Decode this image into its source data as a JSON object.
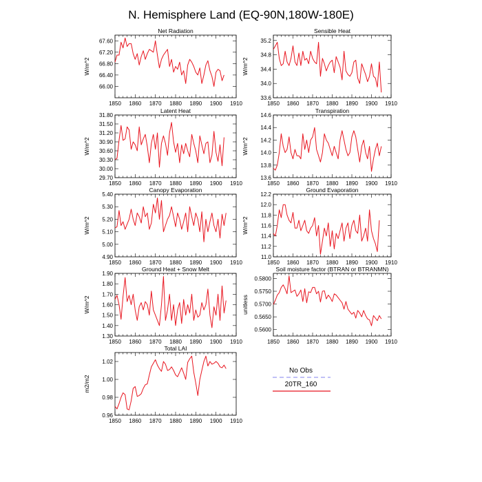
{
  "figure": {
    "title": "N. Hemisphere Land (EQ-90N,180W-180E)"
  },
  "legend": {
    "entries": [
      {
        "label": "No Obs",
        "color": "#9a9af0",
        "dashed": true
      },
      {
        "label": "20TR_160",
        "color": "#e8141e",
        "dashed": false
      }
    ]
  },
  "chart_data": [
    {
      "type": "line",
      "title": "Net Radiation",
      "ylabel": "W/m^2",
      "xlim": [
        1850,
        1910
      ],
      "x_ticks": [
        1850,
        1860,
        1870,
        1880,
        1890,
        1900,
        1910
      ],
      "ylim": [
        65.6,
        67.8
      ],
      "y_ticks": [
        "67.60",
        "67.20",
        "66.80",
        "66.40",
        "66.00"
      ],
      "x_start": 1850,
      "x_step": 1,
      "color": "#e8141e",
      "values": [
        66.85,
        67.1,
        67.1,
        67.55,
        67.35,
        67.7,
        67.4,
        67.5,
        67.5,
        67.15,
        66.95,
        67.15,
        66.75,
        67.05,
        67.25,
        66.95,
        67.15,
        67.3,
        67.25,
        67.2,
        67.6,
        67.1,
        66.65,
        66.95,
        67.1,
        67.2,
        67.3,
        66.7,
        66.95,
        66.5,
        66.7,
        66.6,
        66.85,
        66.4,
        66.55,
        66.1,
        66.75,
        66.95,
        66.85,
        66.7,
        66.5,
        66.4,
        66.65,
        66.1,
        66.4,
        66.75,
        66.9,
        66.55,
        66.35,
        66.0,
        66.5,
        66.6,
        66.55,
        66.2,
        66.4
      ]
    },
    {
      "type": "line",
      "title": "Sensible Heat",
      "ylabel": "W/m^2",
      "xlim": [
        1850,
        1910
      ],
      "x_ticks": [
        1850,
        1860,
        1870,
        1880,
        1890,
        1900,
        1910
      ],
      "ylim": [
        33.6,
        35.35
      ],
      "y_ticks": [
        "35.2",
        "34.8",
        "34.4",
        "34.0",
        "33.6"
      ],
      "x_start": 1850,
      "x_step": 1,
      "color": "#e8141e",
      "values": [
        34.95,
        35.05,
        35.15,
        34.7,
        34.5,
        34.55,
        34.9,
        34.6,
        34.5,
        34.7,
        35.05,
        34.6,
        34.5,
        34.85,
        34.5,
        34.9,
        34.65,
        34.7,
        34.55,
        34.9,
        34.7,
        34.6,
        34.55,
        35.15,
        34.2,
        34.7,
        34.55,
        34.35,
        34.5,
        34.6,
        34.65,
        34.3,
        34.75,
        34.6,
        34.45,
        34.1,
        34.9,
        34.35,
        34.25,
        34.2,
        34.3,
        34.6,
        34.65,
        34.15,
        34.0,
        34.55,
        34.4,
        34.25,
        34.05,
        34.2,
        34.55,
        34.2,
        34.15,
        33.9,
        34.6,
        33.75
      ]
    },
    {
      "type": "line",
      "title": "Latent Heat",
      "ylabel": "W/m^2",
      "xlim": [
        1850,
        1910
      ],
      "x_ticks": [
        1850,
        1860,
        1870,
        1880,
        1890,
        1900,
        1910
      ],
      "ylim": [
        29.7,
        31.8
      ],
      "y_ticks": [
        "31.80",
        "31.50",
        "31.20",
        "30.90",
        "30.60",
        "30.30",
        "30.00",
        "29.70"
      ],
      "x_start": 1850,
      "x_step": 1,
      "color": "#e8141e",
      "values": [
        30.3,
        30.35,
        30.95,
        31.45,
        30.95,
        31.0,
        31.4,
        31.3,
        30.65,
        30.9,
        30.8,
        30.6,
        31.4,
        30.8,
        31.0,
        31.15,
        30.75,
        30.2,
        30.85,
        31.15,
        30.65,
        31.2,
        30.05,
        30.85,
        31.1,
        30.85,
        30.45,
        31.2,
        31.55,
        30.9,
        30.55,
        30.85,
        30.2,
        30.8,
        30.5,
        30.85,
        30.6,
        30.4,
        31.15,
        30.85,
        30.6,
        30.2,
        31.1,
        30.8,
        30.5,
        30.85,
        30.9,
        30.2,
        30.45,
        31.25,
        30.55,
        30.25,
        30.8,
        30.1,
        31.05
      ]
    },
    {
      "type": "line",
      "title": "Transpiration",
      "ylabel": "W/m^2",
      "xlim": [
        1850,
        1910
      ],
      "x_ticks": [
        1850,
        1860,
        1870,
        1880,
        1890,
        1900,
        1910
      ],
      "ylim": [
        13.6,
        14.6
      ],
      "y_ticks": [
        "14.6",
        "14.4",
        "14.2",
        "14.0",
        "13.8",
        "13.6"
      ],
      "x_start": 1850,
      "x_step": 1,
      "color": "#e8141e",
      "values": [
        13.75,
        13.72,
        13.8,
        14.0,
        14.3,
        14.1,
        14.0,
        14.05,
        14.25,
        14.0,
        13.9,
        14.05,
        13.95,
        13.95,
        13.9,
        14.3,
        14.05,
        14.2,
        14.0,
        14.2,
        14.25,
        14.4,
        14.05,
        13.95,
        13.85,
        14.0,
        14.3,
        14.2,
        14.15,
        14.05,
        13.95,
        14.1,
        14.0,
        13.9,
        14.2,
        14.35,
        14.2,
        14.05,
        13.95,
        14.0,
        14.25,
        14.35,
        14.25,
        14.05,
        13.85,
        14.1,
        14.2,
        14.0,
        13.9,
        14.1,
        13.7,
        13.9,
        14.05,
        14.15,
        13.95,
        14.1
      ]
    },
    {
      "type": "line",
      "title": "Canopy Evaporation",
      "ylabel": "W/m^2",
      "xlim": [
        1850,
        1910
      ],
      "x_ticks": [
        1850,
        1860,
        1870,
        1880,
        1890,
        1900,
        1910
      ],
      "ylim": [
        4.9,
        5.4
      ],
      "y_ticks": [
        "5.40",
        "5.30",
        "5.20",
        "5.10",
        "5.00",
        "4.90"
      ],
      "x_start": 1850,
      "x_step": 1,
      "color": "#e8141e",
      "values": [
        5.13,
        5.14,
        5.27,
        5.15,
        5.18,
        5.12,
        5.16,
        5.2,
        5.28,
        5.2,
        5.15,
        5.25,
        5.22,
        5.17,
        5.3,
        5.22,
        5.25,
        5.12,
        5.17,
        5.32,
        5.25,
        5.37,
        5.2,
        5.35,
        5.1,
        5.15,
        5.2,
        5.23,
        5.3,
        5.22,
        5.14,
        5.25,
        5.2,
        5.12,
        5.18,
        5.25,
        5.1,
        5.3,
        5.22,
        5.15,
        5.25,
        5.2,
        5.1,
        5.26,
        5.02,
        5.2,
        5.1,
        5.18,
        5.25,
        5.15,
        5.1,
        5.2,
        5.05,
        5.24,
        5.15,
        5.25
      ]
    },
    {
      "type": "line",
      "title": "Ground Evaporation",
      "ylabel": "W/m^2",
      "xlim": [
        1850,
        1910
      ],
      "x_ticks": [
        1850,
        1860,
        1870,
        1880,
        1890,
        1900,
        1910
      ],
      "ylim": [
        11.0,
        12.2
      ],
      "y_ticks": [
        "12.2",
        "12.0",
        "11.8",
        "11.6",
        "11.4",
        "11.2",
        "11.0"
      ],
      "x_start": 1850,
      "x_step": 1,
      "color": "#e8141e",
      "values": [
        11.45,
        11.4,
        11.6,
        11.9,
        11.75,
        12.0,
        12.0,
        11.8,
        11.7,
        11.65,
        11.85,
        11.55,
        11.55,
        11.7,
        11.5,
        11.6,
        11.7,
        11.5,
        11.45,
        11.55,
        11.6,
        11.75,
        11.4,
        11.6,
        11.05,
        11.3,
        11.55,
        11.4,
        11.65,
        11.2,
        11.5,
        11.15,
        11.45,
        11.35,
        11.5,
        11.65,
        11.3,
        11.55,
        11.65,
        11.35,
        11.6,
        11.7,
        11.5,
        11.45,
        11.8,
        11.3,
        11.4,
        11.55,
        11.3,
        11.9,
        11.5,
        11.35,
        11.25,
        11.1,
        11.7
      ]
    },
    {
      "type": "line",
      "title": "Ground Heat + Snow Melt",
      "ylabel": "W/m^2",
      "xlim": [
        1850,
        1910
      ],
      "x_ticks": [
        1850,
        1860,
        1870,
        1880,
        1890,
        1900,
        1910
      ],
      "ylim": [
        1.3,
        1.9
      ],
      "y_ticks": [
        "1.90",
        "1.80",
        "1.70",
        "1.60",
        "1.50",
        "1.40",
        "1.30"
      ],
      "x_start": 1850,
      "x_step": 1,
      "color": "#e8141e",
      "values": [
        1.65,
        1.69,
        1.6,
        1.46,
        1.68,
        1.86,
        1.63,
        1.69,
        1.6,
        1.7,
        1.55,
        1.45,
        1.58,
        1.62,
        1.55,
        1.63,
        1.6,
        1.5,
        1.73,
        1.55,
        1.5,
        1.45,
        1.4,
        1.6,
        1.87,
        1.45,
        1.55,
        1.7,
        1.45,
        1.6,
        1.4,
        1.55,
        1.62,
        1.42,
        1.65,
        1.5,
        1.6,
        1.52,
        1.7,
        1.45,
        1.55,
        1.48,
        1.5,
        1.62,
        1.55,
        1.6,
        1.75,
        1.5,
        1.38,
        1.58,
        1.5,
        1.7,
        1.45,
        1.78,
        1.52,
        1.64
      ]
    },
    {
      "type": "line",
      "title": "Soil moisture factor (BTRAN or BTRANMN)",
      "ylabel": "unitless",
      "xlim": [
        1850,
        1910
      ],
      "x_ticks": [
        1850,
        1860,
        1870,
        1880,
        1890,
        1900,
        1910
      ],
      "ylim": [
        0.5575,
        0.582
      ],
      "y_ticks": [
        "0.5800",
        "0.5750",
        "0.5700",
        "0.5650",
        "0.5600"
      ],
      "x_start": 1850,
      "x_step": 1,
      "color": "#e8141e",
      "values": [
        0.5698,
        0.5715,
        0.5735,
        0.5745,
        0.5765,
        0.5775,
        0.576,
        0.574,
        0.581,
        0.5745,
        0.575,
        0.5755,
        0.573,
        0.574,
        0.5755,
        0.571,
        0.576,
        0.5705,
        0.5748,
        0.5745,
        0.5765,
        0.5765,
        0.574,
        0.575,
        0.5708,
        0.575,
        0.5752,
        0.572,
        0.5735,
        0.5725,
        0.571,
        0.574,
        0.5735,
        0.5725,
        0.5715,
        0.5705,
        0.568,
        0.571,
        0.568,
        0.567,
        0.566,
        0.5668,
        0.5645,
        0.5675,
        0.5665,
        0.565,
        0.5675,
        0.5655,
        0.5642,
        0.5638,
        0.5615,
        0.5655,
        0.5645,
        0.5635,
        0.5655,
        0.5642
      ]
    },
    {
      "type": "line",
      "title": "Total LAI",
      "ylabel": "m2/m2",
      "xlim": [
        1850,
        1910
      ],
      "x_ticks": [
        1850,
        1860,
        1870,
        1880,
        1890,
        1900,
        1910
      ],
      "ylim": [
        0.96,
        1.03
      ],
      "y_ticks": [
        "1.02",
        "1.00",
        "0.98",
        "0.96"
      ],
      "x_start": 1850,
      "x_step": 1,
      "color": "#e8141e",
      "values": [
        0.97,
        0.967,
        0.973,
        0.98,
        0.985,
        0.983,
        0.967,
        0.966,
        0.976,
        0.99,
        0.992,
        0.981,
        0.982,
        0.984,
        0.99,
        0.994,
        0.995,
        1.005,
        1.014,
        1.018,
        1.022,
        1.016,
        1.012,
        1.009,
        1.02,
        1.017,
        1.01,
        1.011,
        1.014,
        1.01,
        1.005,
        1.003,
        1.008,
        1.013,
        1.007,
        1.0,
        1.019,
        1.023,
        1.026,
        1.008,
        0.996,
        0.982,
        1.0,
        1.01,
        1.02,
        1.026,
        1.015,
        1.02,
        1.017,
        1.018,
        1.02,
        1.018,
        1.014,
        1.013,
        1.016,
        1.012
      ]
    }
  ]
}
